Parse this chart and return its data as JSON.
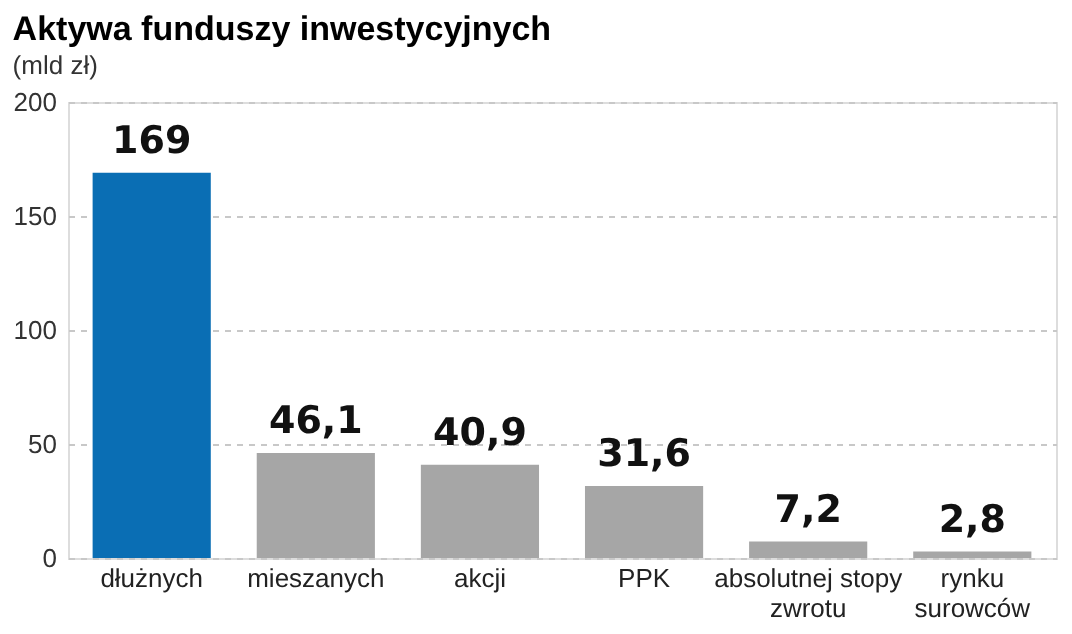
{
  "chart_data": {
    "type": "bar",
    "title": "Aktywa funduszy inwestycyjnych",
    "subtitle": "(mld zł)",
    "categories": [
      "dłużnych",
      "mieszanych",
      "akcji",
      "PPK",
      "absolutnej stopy\nzwrotu",
      "rynku\nsurowców"
    ],
    "values": [
      169,
      46.1,
      40.9,
      31.6,
      7.2,
      2.8
    ],
    "colors": [
      "#0a6eb4",
      "#a6a6a6",
      "#a6a6a6",
      "#a6a6a6",
      "#a6a6a6",
      "#a6a6a6"
    ],
    "value_labels": [
      "169",
      "46,1",
      "40,9",
      "31,6",
      "7,2",
      "2,8"
    ],
    "ylim": [
      0,
      200
    ],
    "yticks": [
      0,
      50,
      100,
      150,
      200
    ],
    "grid": "y"
  }
}
